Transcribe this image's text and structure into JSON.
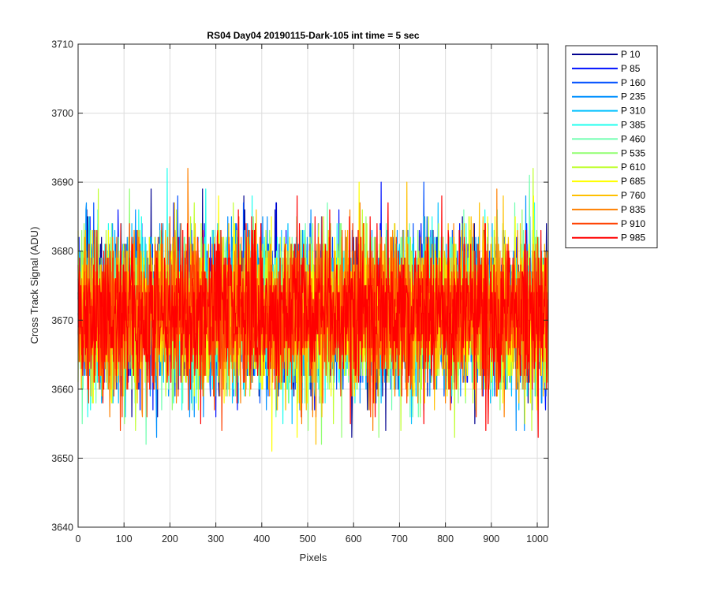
{
  "chart_data": {
    "type": "line",
    "title": "RS04 Day04 20190115-Dark-105 int time = 5 sec",
    "xlabel": "Pixels",
    "ylabel": "Cross Track Signal (ADU)",
    "xlim": [
      0,
      1024
    ],
    "ylim": [
      3640,
      3710
    ],
    "x_ticks": [
      0,
      100,
      200,
      300,
      400,
      500,
      600,
      700,
      800,
      900,
      1000
    ],
    "y_ticks": [
      3640,
      3650,
      3660,
      3670,
      3680,
      3690,
      3700,
      3710
    ],
    "grid": true,
    "legend_position": "outside-right",
    "n_points_per_series": 1024,
    "series_center": 3671,
    "series_spread": 5.5,
    "series": [
      {
        "name": "P 10",
        "color": "#00008f"
      },
      {
        "name": "P 85",
        "color": "#0010ff"
      },
      {
        "name": "P 160",
        "color": "#0050ff"
      },
      {
        "name": "P 235",
        "color": "#0090ff"
      },
      {
        "name": "P 310",
        "color": "#00c0ff"
      },
      {
        "name": "P 385",
        "color": "#20ffef"
      },
      {
        "name": "P 460",
        "color": "#70ffb0"
      },
      {
        "name": "P 535",
        "color": "#90ff70"
      },
      {
        "name": "P 610",
        "color": "#c0ff30"
      },
      {
        "name": "P 685",
        "color": "#ffff00"
      },
      {
        "name": "P 760",
        "color": "#ffc000"
      },
      {
        "name": "P 835",
        "color": "#ff8000"
      },
      {
        "name": "P 910",
        "color": "#ff4000"
      },
      {
        "name": "P 985",
        "color": "#ff0000"
      }
    ]
  }
}
